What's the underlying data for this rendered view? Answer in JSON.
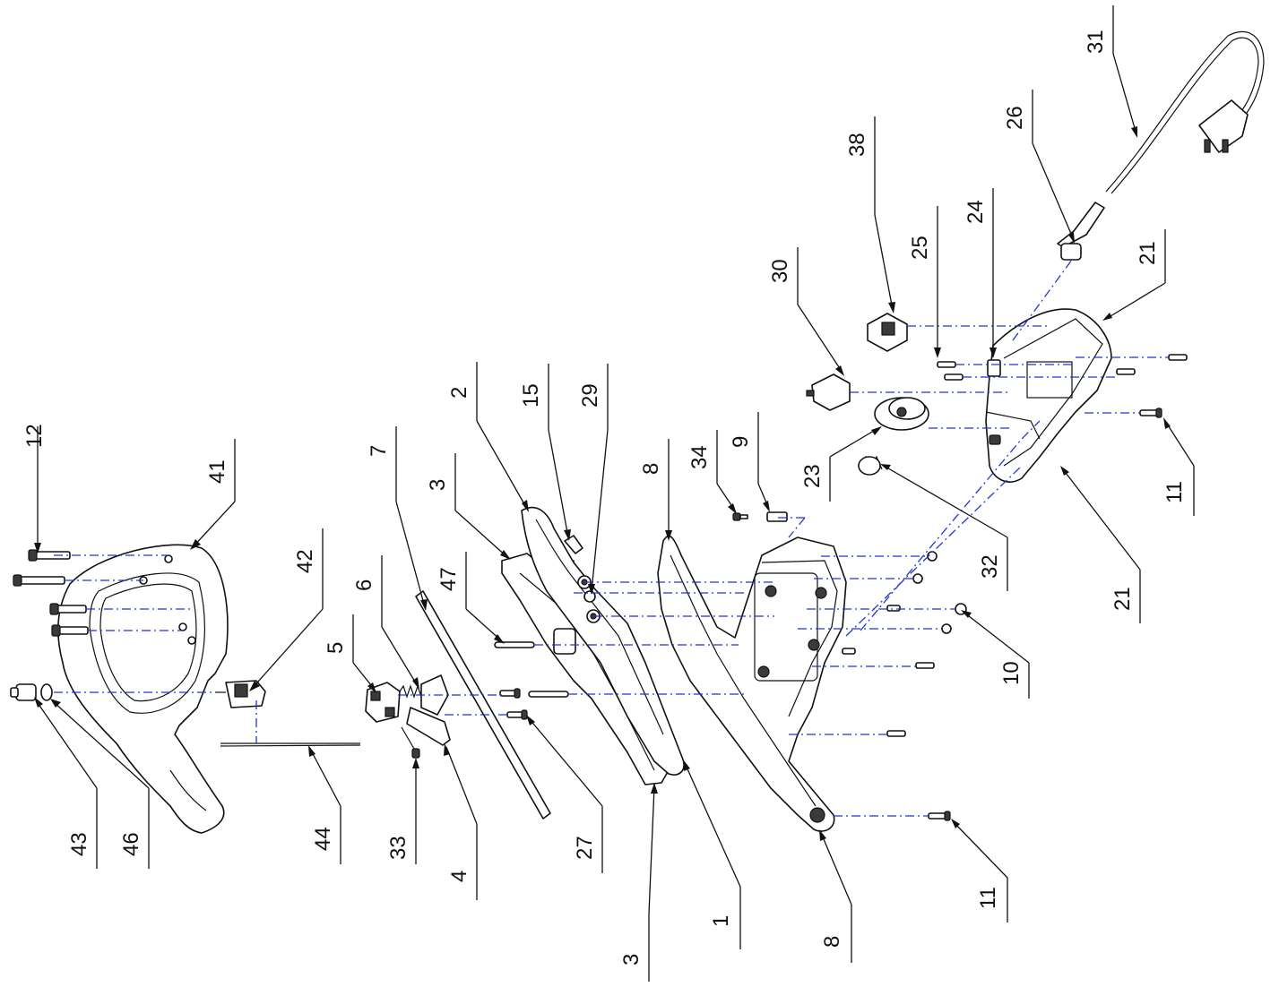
{
  "diagram": {
    "colors": {
      "line": "#111111",
      "alignment": "#1f36d6",
      "background": "#ffffff"
    },
    "callouts": [
      {
        "id": "c12",
        "label": "12"
      },
      {
        "id": "c41",
        "label": "41"
      },
      {
        "id": "c42",
        "label": "42"
      },
      {
        "id": "c43",
        "label": "43"
      },
      {
        "id": "c46",
        "label": "46"
      },
      {
        "id": "c44",
        "label": "44"
      },
      {
        "id": "c6",
        "label": "6"
      },
      {
        "id": "c5",
        "label": "5"
      },
      {
        "id": "c33",
        "label": "33"
      },
      {
        "id": "c4",
        "label": "4"
      },
      {
        "id": "c7",
        "label": "7"
      },
      {
        "id": "c27",
        "label": "27"
      },
      {
        "id": "c3a",
        "label": "3"
      },
      {
        "id": "c47",
        "label": "47"
      },
      {
        "id": "c3b",
        "label": "3"
      },
      {
        "id": "c2",
        "label": "2"
      },
      {
        "id": "c15",
        "label": "15"
      },
      {
        "id": "c29",
        "label": "29"
      },
      {
        "id": "c1",
        "label": "1"
      },
      {
        "id": "c8a",
        "label": "8"
      },
      {
        "id": "c8b",
        "label": "8"
      },
      {
        "id": "c34",
        "label": "34"
      },
      {
        "id": "c9",
        "label": "9"
      },
      {
        "id": "c23",
        "label": "23"
      },
      {
        "id": "c10",
        "label": "10"
      },
      {
        "id": "c11a",
        "label": "11"
      },
      {
        "id": "c11b",
        "label": "11"
      },
      {
        "id": "c30",
        "label": "30"
      },
      {
        "id": "c32",
        "label": "32"
      },
      {
        "id": "c38",
        "label": "38"
      },
      {
        "id": "c25",
        "label": "25"
      },
      {
        "id": "c24",
        "label": "24"
      },
      {
        "id": "c21a",
        "label": "21"
      },
      {
        "id": "c21b",
        "label": "21"
      },
      {
        "id": "c26",
        "label": "26"
      },
      {
        "id": "c31",
        "label": "31"
      }
    ]
  }
}
